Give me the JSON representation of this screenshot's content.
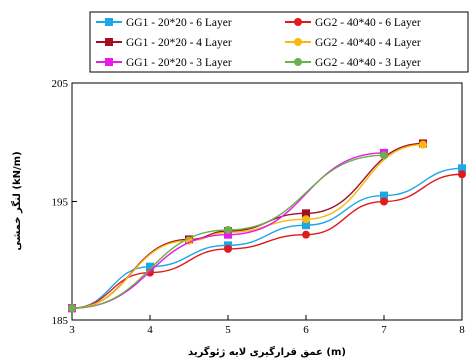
{
  "chart_data": {
    "type": "line",
    "title": "",
    "xlabel": "عمق قرارگیری لایه ژئوگرید (m)",
    "ylabel": "لنگر خمشی (kN/m)",
    "xlim": [
      3,
      8
    ],
    "ylim": [
      185,
      205
    ],
    "x_ticks": [
      "3",
      "4",
      "5",
      "6",
      "7",
      "8"
    ],
    "y_ticks": [
      "185",
      "195",
      "205"
    ],
    "grid": false,
    "legend_position": "top",
    "series": [
      {
        "name": "GG1 - 20*20 - 6 Layer",
        "color": "#1ea7e8",
        "marker": "square",
        "x": [
          3,
          4,
          5,
          6,
          7,
          8
        ],
        "y": [
          186.0,
          189.5,
          191.3,
          193.0,
          195.5,
          197.8
        ]
      },
      {
        "name": "GG2 - 40*40 - 6 Layer",
        "color": "#e31a1c",
        "marker": "circle",
        "x": [
          3,
          4,
          5,
          6,
          7,
          8
        ],
        "y": [
          186.0,
          189.0,
          191.0,
          192.2,
          195.0,
          197.3
        ]
      },
      {
        "name": "GG1 - 20*20 - 4 Layer",
        "color": "#a01020",
        "marker": "square",
        "x": [
          3,
          4.5,
          5,
          6,
          7.5
        ],
        "y": [
          186.0,
          191.8,
          192.5,
          194.0,
          199.9
        ]
      },
      {
        "name": "GG2 - 40*40 - 4 Layer",
        "color": "#f9b80c",
        "marker": "circle",
        "x": [
          3,
          4.5,
          5,
          6,
          7.5
        ],
        "y": [
          186.0,
          191.7,
          192.4,
          193.5,
          199.8
        ]
      },
      {
        "name": "GG1 - 20*20 - 3 Layer",
        "color": "#e81ae8",
        "marker": "square",
        "x": [
          3,
          5,
          7
        ],
        "y": [
          186.0,
          192.2,
          199.1
        ]
      },
      {
        "name": "GG2 - 40*40 - 3 Layer",
        "color": "#6ab04c",
        "marker": "circle",
        "x": [
          3,
          5,
          7
        ],
        "y": [
          186.0,
          192.6,
          198.9
        ]
      }
    ]
  }
}
